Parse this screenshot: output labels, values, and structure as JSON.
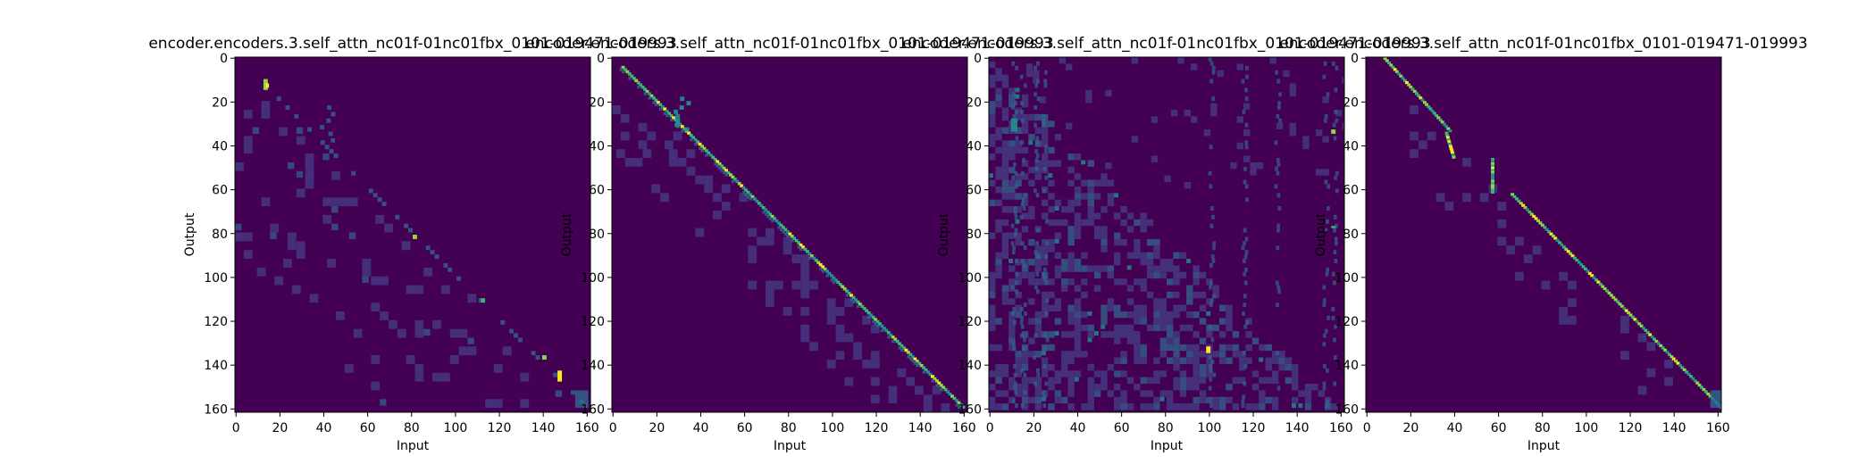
{
  "chart_data": [
    {
      "type": "heatmap",
      "title": "encoder.encoders.3.self_attn_nc01f-01nc01fbx_0101-019471-019993",
      "xlabel": "Input",
      "ylabel": "Output",
      "xlim": [
        0,
        162
      ],
      "ylim": [
        162,
        0
      ],
      "xticks": [
        "0",
        "20",
        "40",
        "60",
        "80",
        "100",
        "120",
        "140",
        "160"
      ],
      "yticks": [
        "0",
        "20",
        "40",
        "60",
        "80",
        "100",
        "120",
        "140",
        "160"
      ],
      "colormap": "viridis",
      "pattern": "sparse lower-triangular attention with a faint diagonal; bright spots near (14,12), (82,82), (113,111), (148,146)"
    },
    {
      "type": "heatmap",
      "title": "encoder.encoders.3.self_attn_nc01f-01nc01fbx_0101-019471-019993",
      "xlabel": "Input",
      "ylabel": "Output",
      "xlim": [
        0,
        162
      ],
      "ylim": [
        162,
        0
      ],
      "xticks": [
        "0",
        "20",
        "40",
        "60",
        "80",
        "100",
        "120",
        "140",
        "160"
      ],
      "yticks": [
        "0",
        "20",
        "40",
        "60",
        "80",
        "100",
        "120",
        "140",
        "160"
      ],
      "colormap": "viridis",
      "pattern": "strong diagonal alignment from (5,5) to (160,160)"
    },
    {
      "type": "heatmap",
      "title": "encoder.encoders.3.self_attn_nc01f-01nc01fbx_0101-019471-019993",
      "xlabel": "Input",
      "ylabel": "Output",
      "xlim": [
        0,
        162
      ],
      "ylim": [
        162,
        0
      ],
      "xticks": [
        "0",
        "20",
        "40",
        "60",
        "80",
        "100",
        "120",
        "140",
        "160"
      ],
      "yticks": [
        "0",
        "20",
        "40",
        "60",
        "80",
        "100",
        "120",
        "140",
        "160"
      ],
      "colormap": "viridis",
      "pattern": "diffuse lower-triangular attention with vertical streaks; bright columns near input 10, 20, 100, 155"
    },
    {
      "type": "heatmap",
      "title": "encoder.encoders.3.self_attn_nc01f-01nc01fbx_0101-019471-019993",
      "xlabel": "Input",
      "ylabel": "Output",
      "xlim": [
        0,
        162
      ],
      "ylim": [
        162,
        0
      ],
      "xticks": [
        "0",
        "20",
        "40",
        "60",
        "80",
        "100",
        "120",
        "140",
        "160"
      ],
      "yticks": [
        "0",
        "20",
        "40",
        "60",
        "80",
        "100",
        "120",
        "140",
        "160"
      ],
      "colormap": "viridis",
      "pattern": "sharp diagonal alignment with steps near input 38 and 58"
    }
  ],
  "colors": {
    "bg": "#440154",
    "faint": "#46337e",
    "mid": "#31688e",
    "teal": "#21918c",
    "green": "#35b779",
    "bright": "#90d743",
    "peak": "#fde725"
  }
}
